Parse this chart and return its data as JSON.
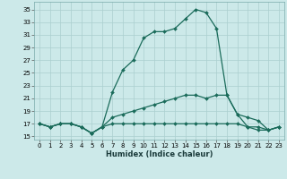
{
  "xlabel": "Humidex (Indice chaleur)",
  "x_ticks": [
    0,
    1,
    2,
    3,
    4,
    5,
    6,
    7,
    8,
    9,
    10,
    11,
    12,
    13,
    14,
    15,
    16,
    17,
    18,
    19,
    20,
    21,
    22,
    23
  ],
  "y_ticks": [
    15,
    17,
    19,
    21,
    23,
    25,
    27,
    29,
    31,
    33,
    35
  ],
  "xlim": [
    -0.5,
    23.5
  ],
  "ylim": [
    14.5,
    36.2
  ],
  "bg_color": "#cce9e9",
  "grid_color": "#aacfcf",
  "line_color": "#1a6b5a",
  "line1_x": [
    0,
    1,
    2,
    3,
    4,
    5,
    6,
    7,
    8,
    9,
    10,
    11,
    12,
    13,
    14,
    15,
    16,
    17,
    18,
    19,
    20,
    21,
    22,
    23
  ],
  "line1_y": [
    17.0,
    16.5,
    17.0,
    17.0,
    16.5,
    15.5,
    16.5,
    22.0,
    25.5,
    27.0,
    30.5,
    31.5,
    31.5,
    32.0,
    33.5,
    35.0,
    34.5,
    32.0,
    21.5,
    18.5,
    16.5,
    16.0,
    16.0,
    16.5
  ],
  "line2_x": [
    0,
    1,
    2,
    3,
    4,
    5,
    6,
    7,
    8,
    9,
    10,
    11,
    12,
    13,
    14,
    15,
    16,
    17,
    18,
    19,
    20,
    21,
    22,
    23
  ],
  "line2_y": [
    17.0,
    16.5,
    17.0,
    17.0,
    16.5,
    15.5,
    16.5,
    18.0,
    18.5,
    19.0,
    19.5,
    20.0,
    20.5,
    21.0,
    21.5,
    21.5,
    21.0,
    21.5,
    21.5,
    18.5,
    18.0,
    17.5,
    16.0,
    16.5
  ],
  "line3_x": [
    0,
    1,
    2,
    3,
    4,
    5,
    6,
    7,
    8,
    9,
    10,
    11,
    12,
    13,
    14,
    15,
    16,
    17,
    18,
    19,
    20,
    21,
    22,
    23
  ],
  "line3_y": [
    17.0,
    16.5,
    17.0,
    17.0,
    16.5,
    15.5,
    16.5,
    17.0,
    17.0,
    17.0,
    17.0,
    17.0,
    17.0,
    17.0,
    17.0,
    17.0,
    17.0,
    17.0,
    17.0,
    17.0,
    16.5,
    16.5,
    16.0,
    16.5
  ],
  "marker_size": 2.0,
  "line_width": 0.9,
  "tick_fontsize": 5.0,
  "xlabel_fontsize": 6.0
}
